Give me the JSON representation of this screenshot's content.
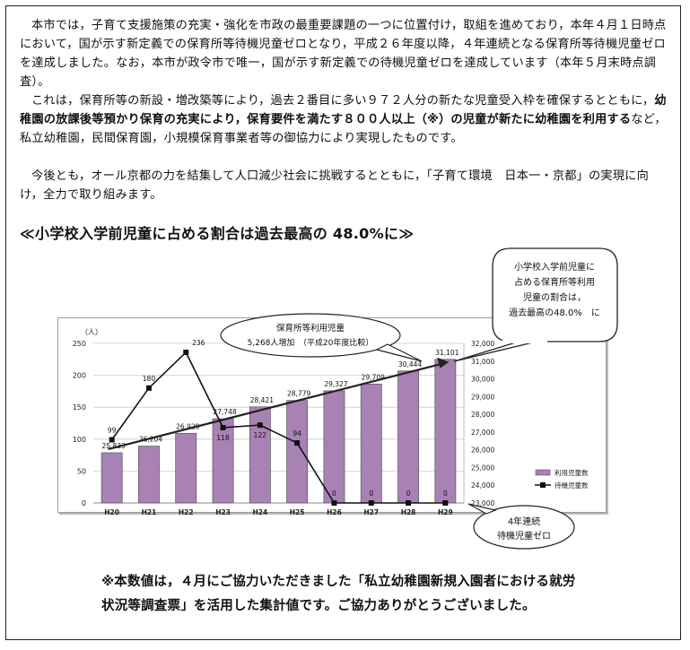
{
  "body": {
    "p1": "本市では，子育て支援施策の充実・強化を市政の最重要課題の一つに位置付け，取組を進めており，本年４月１日時点において，国が示す新定義での保育所等待機児童ゼロとなり，平成２６年度以降，４年連続となる保育所等待機児童ゼロを達成しました。なお，本市が政令市で唯一，国が示す新定義での待機児童ゼロを達成しています（本年５月末時点調査）。",
    "p2_a": "これは，保育所等の新設・増改築等により，過去２番目に多い９７２人分の新たな児童受入枠を確保するとともに，",
    "p2_b": "幼稚園の放課後等預かり保育の充実により，保育要件を満たす８００人以上（※）の児童が新たに幼稚園を利用する",
    "p2_c": "など，私立幼稚園，民間保育園，小規模保育事業者等の御協力により実現したものです。",
    "p3": "今後とも，オール京都の力を結集して人口減少社会に挑戦するとともに，「子育て環境　日本一・京都」の実現に向け，全力で取り組みます。"
  },
  "heading": "≪小学校入学前児童に占める割合は過去最高の 48.0%に≫",
  "callouts": {
    "ratio": [
      "小学校入学前児童に",
      "占める保育所等利用",
      "児童の割合は，",
      "過去最高の48.0%　に"
    ],
    "increase": [
      "保育所等利用児童",
      "5,268人増加　（平成20年度比較）"
    ],
    "zero": [
      "4年連続",
      "待機児童ゼロ"
    ]
  },
  "chart_data": {
    "type": "bar",
    "categories": [
      "H20",
      "H21",
      "H22",
      "H23",
      "H24",
      "H25",
      "H26",
      "H27",
      "H28",
      "H29"
    ],
    "series": [
      {
        "name": "利用児童数",
        "type": "bar",
        "axis": "right",
        "color": "#a882b4",
        "values": [
          25833,
          26204,
          26929,
          27748,
          28421,
          28779,
          29327,
          29709,
          30444,
          31101
        ],
        "labels": [
          "25,833",
          "26,204",
          "26,929",
          "27,748",
          "28,421",
          "28,779",
          "29,327",
          "29,709",
          "30,444",
          "31,101"
        ]
      },
      {
        "name": "待機児童数",
        "type": "line",
        "axis": "left",
        "color": "#111111",
        "values": [
          99,
          180,
          236,
          118,
          122,
          94,
          0,
          0,
          0,
          0
        ]
      }
    ],
    "left_axis": {
      "label": "（人）",
      "min": 0,
      "max": 250,
      "ticks": [
        "0",
        "50",
        "100",
        "150",
        "200",
        "250"
      ]
    },
    "right_axis": {
      "min": 23000,
      "max": 32000,
      "ticks": [
        "23,000",
        "24,000",
        "25,000",
        "26,000",
        "27,000",
        "28,000",
        "29,000",
        "30,000",
        "31,000",
        "32,000"
      ]
    },
    "legend": {
      "position": "right"
    }
  },
  "footnote": {
    "line1": "※本数値は，４月にご協力いただきました「私立幼稚園新規入園者における就労",
    "line2": "状況等調査票」を活用した集計値です。ご協力ありがとうございました。"
  }
}
